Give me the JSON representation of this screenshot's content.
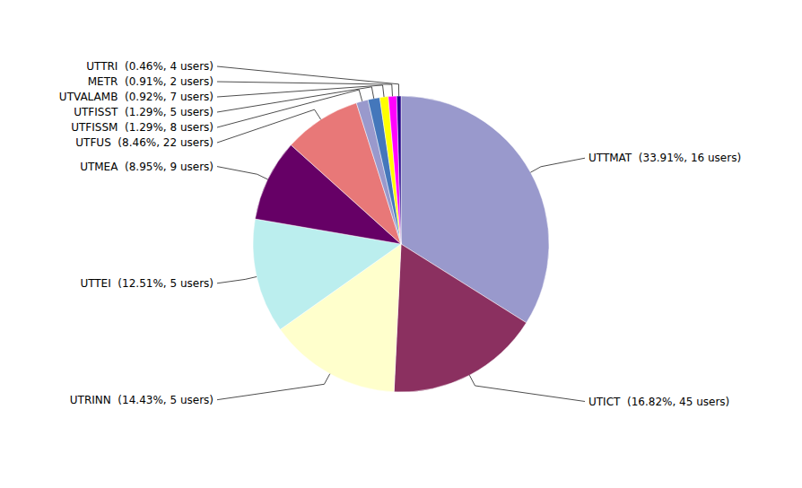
{
  "chart_data": {
    "type": "pie",
    "values": [
      33.91,
      16.82,
      14.43,
      12.51,
      8.95,
      8.46,
      1.29,
      1.29,
      0.92,
      0.91,
      0.46
    ],
    "value_labels": [
      "UTTMAT  (33.91%, 16 users)",
      "UTICT  (16.82%, 45 users)",
      "UTRINN  (14.43%, 5 users)",
      "UTTEI  (12.51%, 5 users)",
      "UTMEA  (8.95%, 9 users)",
      "UTFUS  (8.46%, 22 users)",
      "UTFISSM  (1.29%, 8 users)",
      "UTFISST  (1.29%, 5 users)",
      "UTVALAMB  (0.92%, 7 users)",
      "METR  (0.91%, 2 users)",
      "UTTRI  (0.46%, 4 users)"
    ],
    "colors": [
      "#9999CC",
      "#8B3060",
      "#FFFFCC",
      "#BBEEEE",
      "#660066",
      "#E87878",
      "#9999CC",
      "#4477BB",
      "#FFFF00",
      "#FF00FF",
      "#220088"
    ]
  }
}
